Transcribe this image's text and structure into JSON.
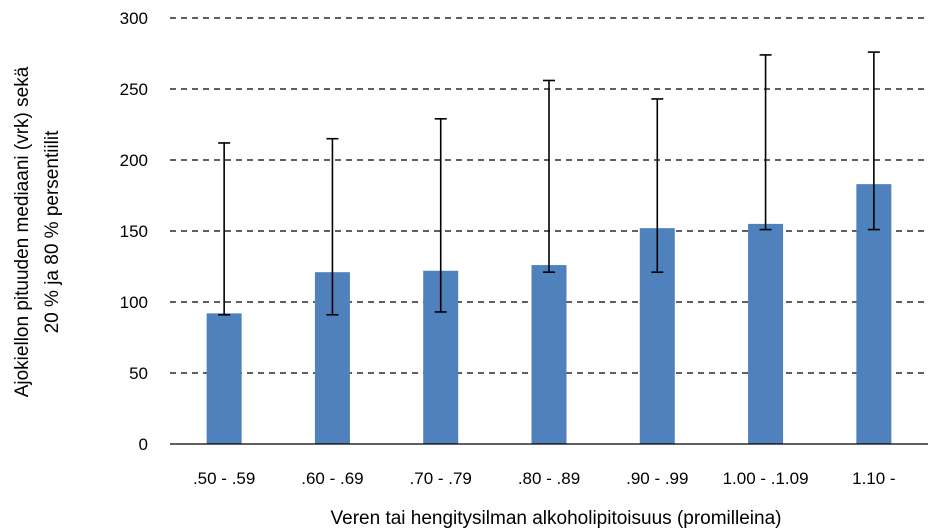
{
  "chart_data": {
    "type": "bar",
    "title": "",
    "xlabel": "Veren tai hengitysilman alkoholipitoisuus (promilleina)",
    "ylabel_lines": [
      "Ajokiellon pituuden mediaani (vrk) sekä",
      "20 % ja 80 % persentiilit"
    ],
    "categories": [
      ".50 - .59",
      ".60 - .69",
      ".70 - .79",
      ".80 - .89",
      ".90 - .99",
      "1.00 - .1.09",
      "1.10 -"
    ],
    "values": [
      92,
      121,
      122,
      126,
      152,
      155,
      183
    ],
    "error_low": [
      91,
      91,
      93,
      121,
      121,
      151,
      151
    ],
    "error_high": [
      212,
      215,
      229,
      256,
      243,
      274,
      276
    ],
    "ylim": [
      0,
      300
    ],
    "yticks": [
      0,
      50,
      100,
      150,
      200,
      250,
      300
    ],
    "grid": true,
    "legend": "none",
    "bar_color": "#4f81bd",
    "error_bar_color": "#000000",
    "grid_color": "#000000"
  }
}
